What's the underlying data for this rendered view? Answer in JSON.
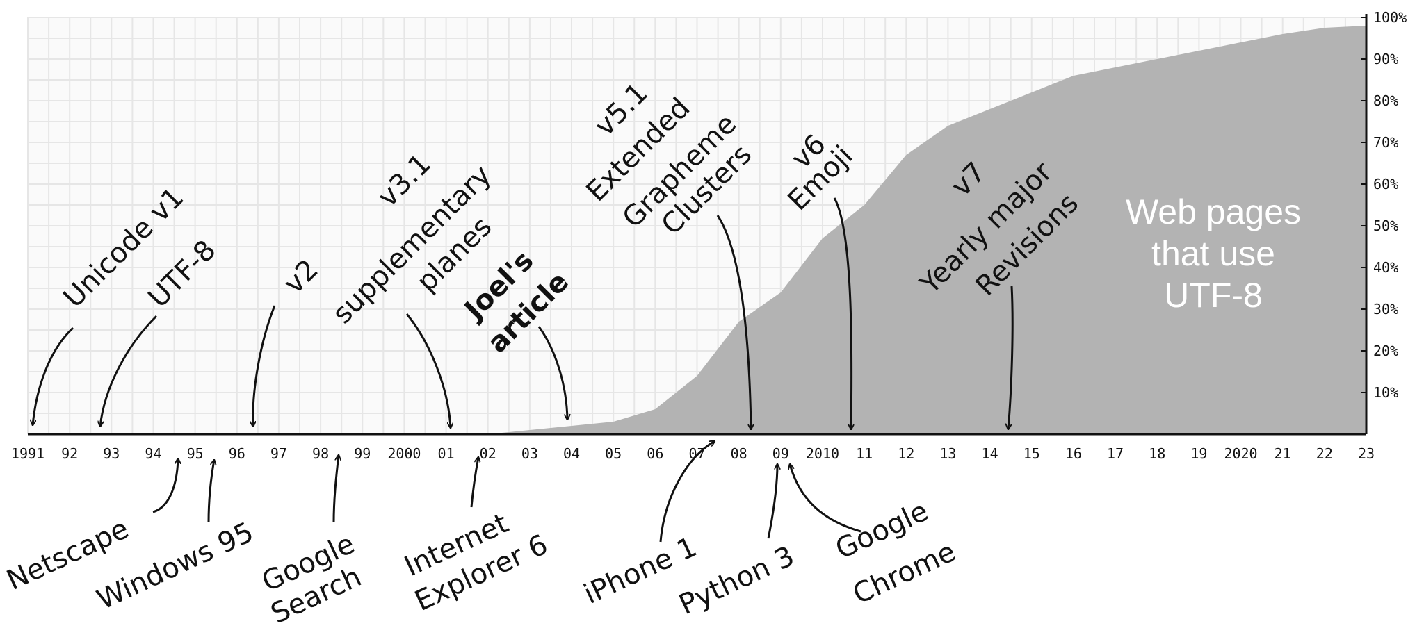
{
  "chart_data": {
    "type": "area",
    "series": [
      {
        "name": "Web pages that use UTF-8",
        "x": [
          2002,
          2003,
          2004,
          2005,
          2006,
          2007,
          2008,
          2009,
          2010,
          2011,
          2012,
          2013,
          2014,
          2015,
          2016,
          2017,
          2018,
          2019,
          2020,
          2021,
          2022,
          2023
        ],
        "values": [
          0,
          1,
          2,
          3,
          6,
          14,
          27,
          34,
          47,
          55,
          67,
          74,
          78,
          82,
          86,
          88,
          90,
          92,
          94,
          96,
          97.5,
          98
        ],
        "color": "#b3b3b3"
      }
    ],
    "xlim": [
      1991,
      2023
    ],
    "ylim": [
      0,
      100
    ],
    "x_tick_labels": [
      "1991",
      "92",
      "93",
      "94",
      "95",
      "96",
      "97",
      "98",
      "99",
      "2000",
      "01",
      "02",
      "03",
      "04",
      "05",
      "06",
      "07",
      "08",
      "09",
      "2010",
      "11",
      "12",
      "13",
      "14",
      "15",
      "16",
      "17",
      "18",
      "19",
      "2020",
      "21",
      "22",
      "23"
    ],
    "y_tick_labels": [
      "10%",
      "20%",
      "30%",
      "40%",
      "50%",
      "60%",
      "70%",
      "80%",
      "90%",
      "100%"
    ],
    "y_axis_side": "right",
    "grid": true,
    "series_label": [
      "Web pages",
      "that use",
      "UTF-8"
    ],
    "annotations_above": [
      {
        "id": "unicode-v1",
        "lines": [
          "Unicode v1"
        ],
        "year": 1991.2,
        "bold": false
      },
      {
        "id": "utf-8",
        "lines": [
          "UTF-8"
        ],
        "year": 1992.8,
        "bold": false
      },
      {
        "id": "v2",
        "lines": [
          "v2"
        ],
        "year": 1996.4,
        "bold": false
      },
      {
        "id": "v3-1",
        "lines": [
          "v3.1",
          "supplementary",
          "planes"
        ],
        "year": 2001.1,
        "bold": false
      },
      {
        "id": "joels-article",
        "lines": [
          "Joel's",
          "article"
        ],
        "year": 2003.9,
        "bold": true
      },
      {
        "id": "v5-1",
        "lines": [
          "v5.1",
          "Extended",
          "Grapheme",
          "Clusters"
        ],
        "year": 2008.2,
        "bold": false
      },
      {
        "id": "v6",
        "lines": [
          "v6",
          "Emoji"
        ],
        "year": 2010.6,
        "bold": false
      },
      {
        "id": "v7",
        "lines": [
          "v7",
          "Yearly major",
          "Revisions"
        ],
        "year": 2014.3,
        "bold": false
      }
    ],
    "annotations_below": [
      {
        "id": "netscape",
        "lines": [
          "Netscape"
        ],
        "year": 1994.5
      },
      {
        "id": "windows-95",
        "lines": [
          "Windows 95"
        ],
        "year": 1995.5
      },
      {
        "id": "google-search",
        "lines": [
          "Google",
          "Search"
        ],
        "year": 1998.4
      },
      {
        "id": "internet-explorer-6",
        "lines": [
          "Internet",
          "Explorer 6"
        ],
        "year": 2001.7
      },
      {
        "id": "iphone-1",
        "lines": [
          "iPhone 1"
        ],
        "year": 2007.3
      },
      {
        "id": "python-3",
        "lines": [
          "Python 3"
        ],
        "year": 2008.9
      },
      {
        "id": "google-chrome",
        "lines": [
          "Google",
          "Chrome"
        ],
        "year": 2009.2
      }
    ]
  }
}
